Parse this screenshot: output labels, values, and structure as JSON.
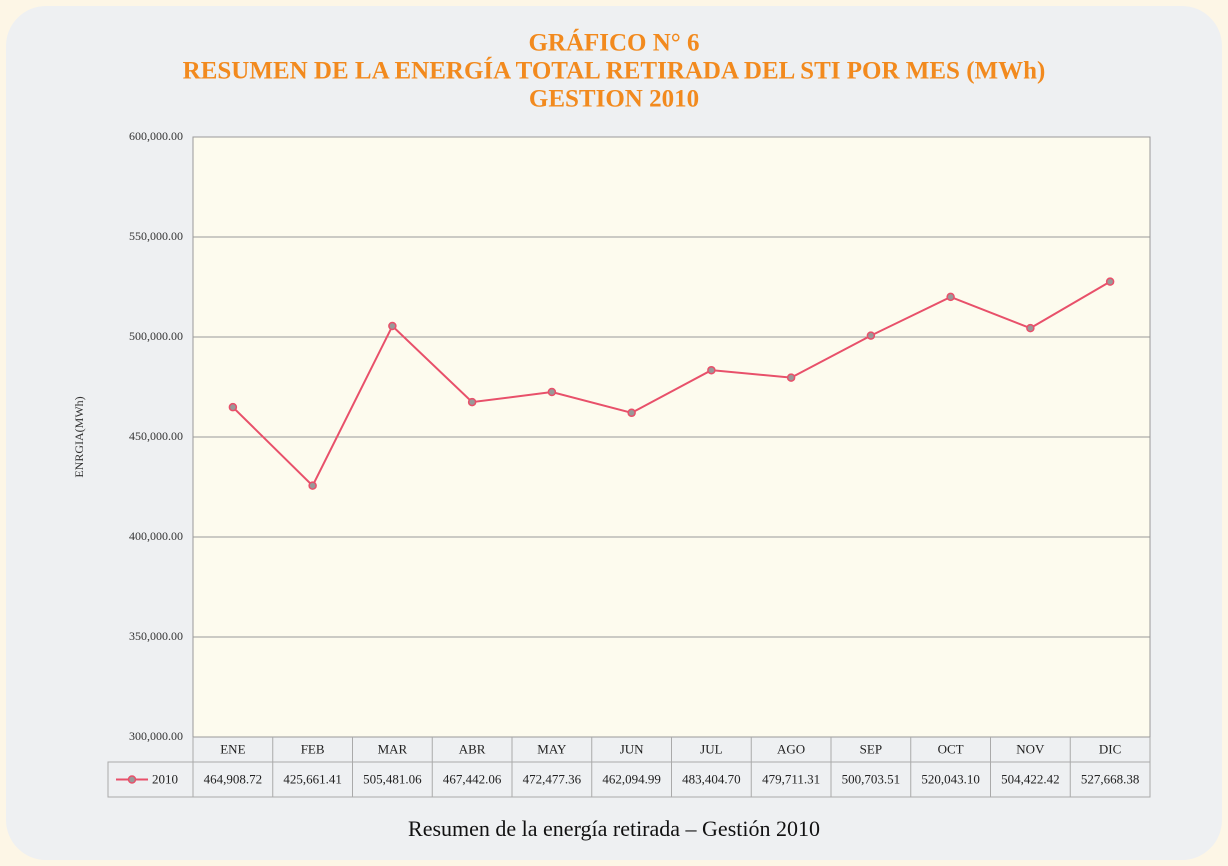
{
  "chart_data": {
    "type": "line",
    "title": "GRÁFICO N° 6",
    "subtitle": "RESUMEN DE LA ENERGÍA TOTAL RETIRADA DEL STI POR MES (MWh)",
    "subtitle2": "GESTION 2010",
    "y_label": "ENRGIA(MWh)",
    "caption": "Resumen de  la energía retirada – Gestión 2010",
    "categories": [
      "ENE",
      "FEB",
      "MAR",
      "ABR",
      "MAY",
      "JUN",
      "JUL",
      "AGO",
      "SEP",
      "OCT",
      "NOV",
      "DIC"
    ],
    "series": [
      {
        "name": "2010",
        "color": "#e8506a",
        "values": [
          464908.72,
          425661.41,
          505481.06,
          467442.06,
          472477.36,
          462094.99,
          483404.7,
          479711.31,
          500703.51,
          520043.1,
          504422.42,
          527668.38
        ],
        "value_labels": [
          "464,908.72",
          "425,661.41",
          "505,481.06",
          "467,442.06",
          "472,477.36",
          "462,094.99",
          "483,404.70",
          "479,711.31",
          "500,703.51",
          "520,043.10",
          "504,422.42",
          "527,668.38"
        ]
      }
    ],
    "ylim": [
      300000,
      600000
    ],
    "yticks": [
      {
        "value": 300000,
        "label": "300,000.00"
      },
      {
        "value": 350000,
        "label": "350,000.00"
      },
      {
        "value": 400000,
        "label": "400,000.00"
      },
      {
        "value": 450000,
        "label": "450,000.00"
      },
      {
        "value": 500000,
        "label": "500,000.00"
      },
      {
        "value": 550000,
        "label": "550,000.00"
      },
      {
        "value": 600000,
        "label": "600,000.00"
      }
    ],
    "grid": true
  }
}
